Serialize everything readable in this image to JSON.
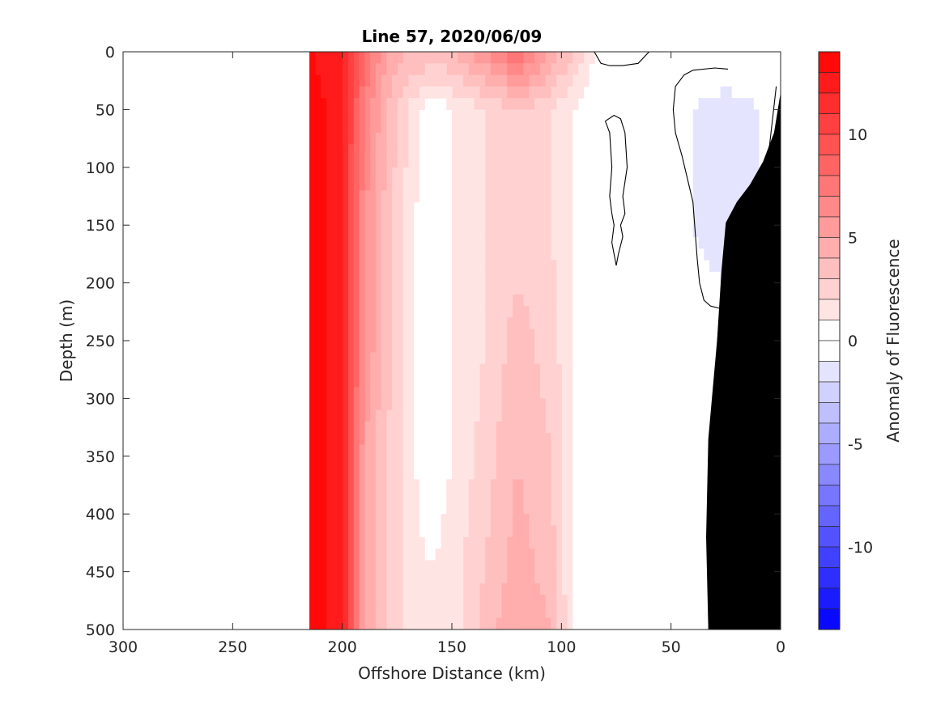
{
  "chart_data": {
    "type": "heatmap",
    "title": "Line 57, 2020/06/09",
    "xlabel": "Offshore Distance (km)",
    "ylabel": "Depth (m)",
    "colorbar_label": "Anomaly of Fluorescence",
    "xlim": [
      300,
      0
    ],
    "x_reversed": true,
    "ylim": [
      0,
      500
    ],
    "y_reversed": true,
    "x_ticks": [
      300,
      250,
      200,
      150,
      100,
      50,
      0
    ],
    "y_ticks": [
      0,
      50,
      100,
      150,
      200,
      250,
      300,
      350,
      400,
      450,
      500
    ],
    "colorbar_range": [
      -14,
      14
    ],
    "colorbar_step": 1,
    "colorbar_ticks": [
      10,
      5,
      0,
      -5,
      -10
    ],
    "grid": false,
    "positive_color": "#ff0000",
    "negative_color": "#0000ff",
    "zero_color": "#ffffff",
    "zero_contour_color": "#000000",
    "bathymetry_color": "#000000",
    "data_extent_x_km": [
      0,
      215
    ],
    "bathymetry": {
      "x": [
        0,
        3,
        8,
        14,
        20,
        25,
        27,
        29,
        33,
        34,
        33
      ],
      "depth": [
        35,
        70,
        95,
        115,
        130,
        148,
        190,
        250,
        335,
        420,
        500
      ]
    },
    "anomaly_profiles": {
      "depths": [
        0,
        50,
        150,
        250,
        350,
        450,
        500
      ],
      "columns": [
        {
          "x": 215,
          "values": [
            13,
            14,
            14,
            14,
            14,
            14,
            14
          ]
        },
        {
          "x": 200,
          "values": [
            12,
            12,
            12,
            12,
            12,
            12,
            12
          ]
        },
        {
          "x": 190,
          "values": [
            8,
            7,
            6,
            6,
            5,
            5,
            5
          ]
        },
        {
          "x": 180,
          "values": [
            5,
            4,
            3.5,
            3.5,
            3,
            3,
            3
          ]
        },
        {
          "x": 170,
          "values": [
            4,
            2,
            1.5,
            1.5,
            1.5,
            1.5,
            1.5
          ]
        },
        {
          "x": 160,
          "values": [
            4,
            0,
            0,
            0,
            0,
            1,
            1
          ]
        },
        {
          "x": 150,
          "values": [
            4,
            1,
            1,
            1,
            1,
            1.5,
            1.5
          ]
        },
        {
          "x": 135,
          "values": [
            6,
            2,
            2,
            2,
            2.5,
            3,
            3.5
          ]
        },
        {
          "x": 120,
          "values": [
            8,
            3,
            2.5,
            3.5,
            4,
            4.5,
            5
          ]
        },
        {
          "x": 105,
          "values": [
            5,
            2,
            2,
            2.5,
            3,
            3.5,
            4
          ]
        },
        {
          "x": 95,
          "values": [
            3,
            1,
            1,
            1,
            1,
            1,
            1
          ]
        },
        {
          "x": 85,
          "values": [
            1,
            0,
            0,
            0,
            0,
            0.5,
            0.5
          ]
        },
        {
          "x": 70,
          "values": [
            0,
            0,
            0,
            0,
            0,
            0,
            0
          ]
        },
        {
          "x": 50,
          "values": [
            1,
            0,
            0,
            0,
            0,
            0.5,
            0.5
          ]
        },
        {
          "x": 40,
          "values": [
            1,
            -1,
            -1,
            0,
            0.5,
            0.5,
            0.5
          ]
        },
        {
          "x": 25,
          "values": [
            1,
            -2,
            -2,
            0,
            0,
            0,
            0
          ]
        },
        {
          "x": 10,
          "values": [
            1,
            -1,
            -1,
            0,
            0,
            0,
            0
          ]
        },
        {
          "x": 0,
          "values": [
            0,
            0,
            0,
            0,
            0,
            0,
            0
          ]
        }
      ]
    },
    "zero_contours": [
      {
        "x": [
          85,
          82,
          78,
          72,
          65,
          60,
          65,
          72,
          80,
          85
        ],
        "depth": [
          0,
          10,
          12,
          12,
          10,
          0,
          0,
          0,
          0,
          0
        ]
      },
      {
        "x": [
          80,
          78,
          77,
          78,
          77,
          76,
          77,
          75,
          74,
          72,
          73,
          71,
          72,
          70,
          71,
          73,
          76,
          80
        ],
        "depth": [
          60,
          70,
          100,
          125,
          140,
          150,
          165,
          185,
          175,
          160,
          150,
          140,
          125,
          100,
          70,
          58,
          55,
          60
        ]
      },
      {
        "x": [
          24,
          30,
          40,
          44,
          48,
          49,
          48,
          45,
          40,
          38,
          37,
          35,
          32,
          28,
          25,
          20,
          12,
          5,
          2
        ],
        "depth": [
          15,
          14,
          16,
          20,
          30,
          50,
          70,
          90,
          130,
          180,
          200,
          215,
          220,
          222,
          225,
          215,
          150,
          80,
          30
        ]
      }
    ]
  }
}
